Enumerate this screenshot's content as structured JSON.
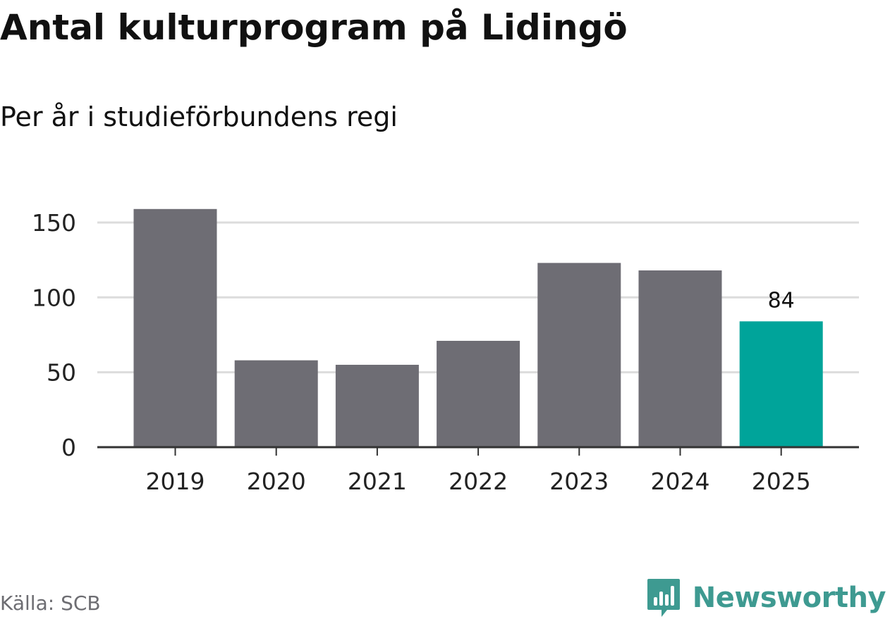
{
  "header": {
    "title": "Antal kulturprogram på Lidingö",
    "subtitle": "Per år i studieförbundens regi"
  },
  "footer": {
    "source": "Källa: SCB",
    "brand": "Newsworthy",
    "brand_icon": "bar-chart-speech-bubble-icon"
  },
  "colors": {
    "bar_default": "#6e6d74",
    "bar_highlight": "#00a49a",
    "gridline": "#dcdcdc",
    "axis": "#333333",
    "brand": "#3e9a91"
  },
  "chart_data": {
    "type": "bar",
    "categories": [
      "2019",
      "2020",
      "2021",
      "2022",
      "2023",
      "2024",
      "2025"
    ],
    "values": [
      159,
      58,
      55,
      71,
      123,
      118,
      84
    ],
    "highlight_index": 6,
    "data_labels": [
      {
        "index": 6,
        "text": "84"
      }
    ],
    "yticks": [
      0,
      50,
      100,
      150
    ],
    "ylim": [
      0,
      160
    ],
    "grid": true,
    "legend": "none",
    "title": "Antal kulturprogram på Lidingö",
    "subtitle": "Per år i studieförbundens regi",
    "xlabel": "",
    "ylabel": ""
  }
}
